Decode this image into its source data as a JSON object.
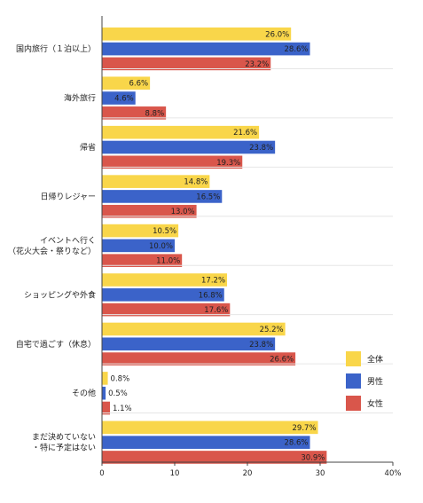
{
  "chart_data": {
    "type": "bar",
    "orientation": "horizontal",
    "categories": [
      [
        "国内旅行（１泊以上）"
      ],
      [
        "海外旅行"
      ],
      [
        "帰省"
      ],
      [
        "日帰りレジャー"
      ],
      [
        "イベントへ行く",
        "（花火大会・祭りなど）"
      ],
      [
        "ショッピングや外食"
      ],
      [
        "自宅で過ごす（休息）"
      ],
      [
        "その他"
      ],
      [
        "まだ決めていない",
        "・特に予定はない"
      ]
    ],
    "series": [
      {
        "name": "全体",
        "color": "#f9d64a",
        "values": [
          26.0,
          6.6,
          21.6,
          14.8,
          10.5,
          17.2,
          25.2,
          0.8,
          29.7
        ],
        "labels": [
          "26.0%",
          "6.6%",
          "21.6%",
          "14.8%",
          "10.5%",
          "17.2%",
          "25.2%",
          "0.8%",
          "29.7%"
        ]
      },
      {
        "name": "男性",
        "color": "#3b63c9",
        "values": [
          28.6,
          4.6,
          23.8,
          16.5,
          10.0,
          16.8,
          23.8,
          0.5,
          28.6
        ],
        "labels": [
          "28.6%",
          "4.6%",
          "23.8%",
          "16.5%",
          "10.0%",
          "16.8%",
          "23.8%",
          "0.5%",
          "28.6%"
        ]
      },
      {
        "name": "女性",
        "color": "#d9564b",
        "values": [
          23.2,
          8.8,
          19.3,
          13.0,
          11.0,
          17.6,
          26.6,
          1.1,
          30.9
        ],
        "labels": [
          "23.2%",
          "8.8%",
          "19.3%",
          "13.0%",
          "11.0%",
          "17.6%",
          "26.6%",
          "1.1%",
          "30.9%"
        ]
      }
    ],
    "xlim": [
      0,
      40
    ],
    "xticks": [
      "0",
      "10",
      "20",
      "30",
      "40%"
    ],
    "grid": false,
    "legend": "right"
  }
}
